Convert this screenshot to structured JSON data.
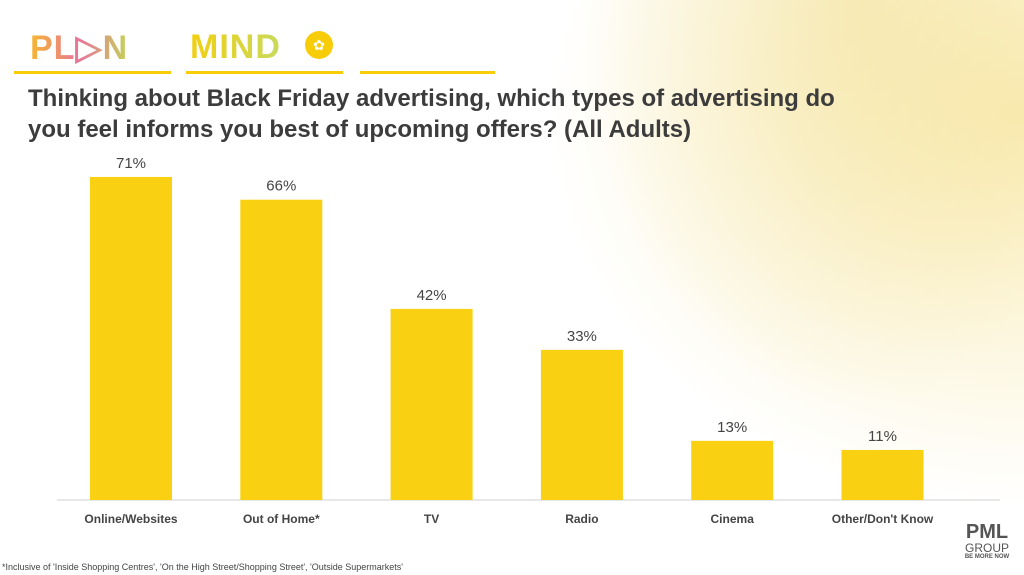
{
  "logos": {
    "plan": "PL▷N",
    "mind": "MIND",
    "pml": "PML",
    "pml_group": "GROUP",
    "pml_tagline": "BE MORE NOW"
  },
  "accent_color": "#f9d112",
  "footnote": "*Inclusive of 'Inside Shopping Centres', 'On the High Street/Shopping Street', 'Outside Supermarkets'",
  "chart_data": {
    "type": "bar",
    "title": "Thinking about Black Friday advertising, which types of advertising do you feel informs you best of upcoming offers? (All Adults)",
    "categories": [
      "Online/Websites",
      "Out of Home*",
      "TV",
      "Radio",
      "Cinema",
      "Other/Don't Know"
    ],
    "values": [
      71,
      66,
      42,
      33,
      13,
      11
    ],
    "data_labels": [
      "71%",
      "66%",
      "42%",
      "33%",
      "13%",
      "11%"
    ],
    "bar_color": "#f9d112",
    "xlabel": "",
    "ylabel": "",
    "grid": false,
    "legend": "none"
  }
}
